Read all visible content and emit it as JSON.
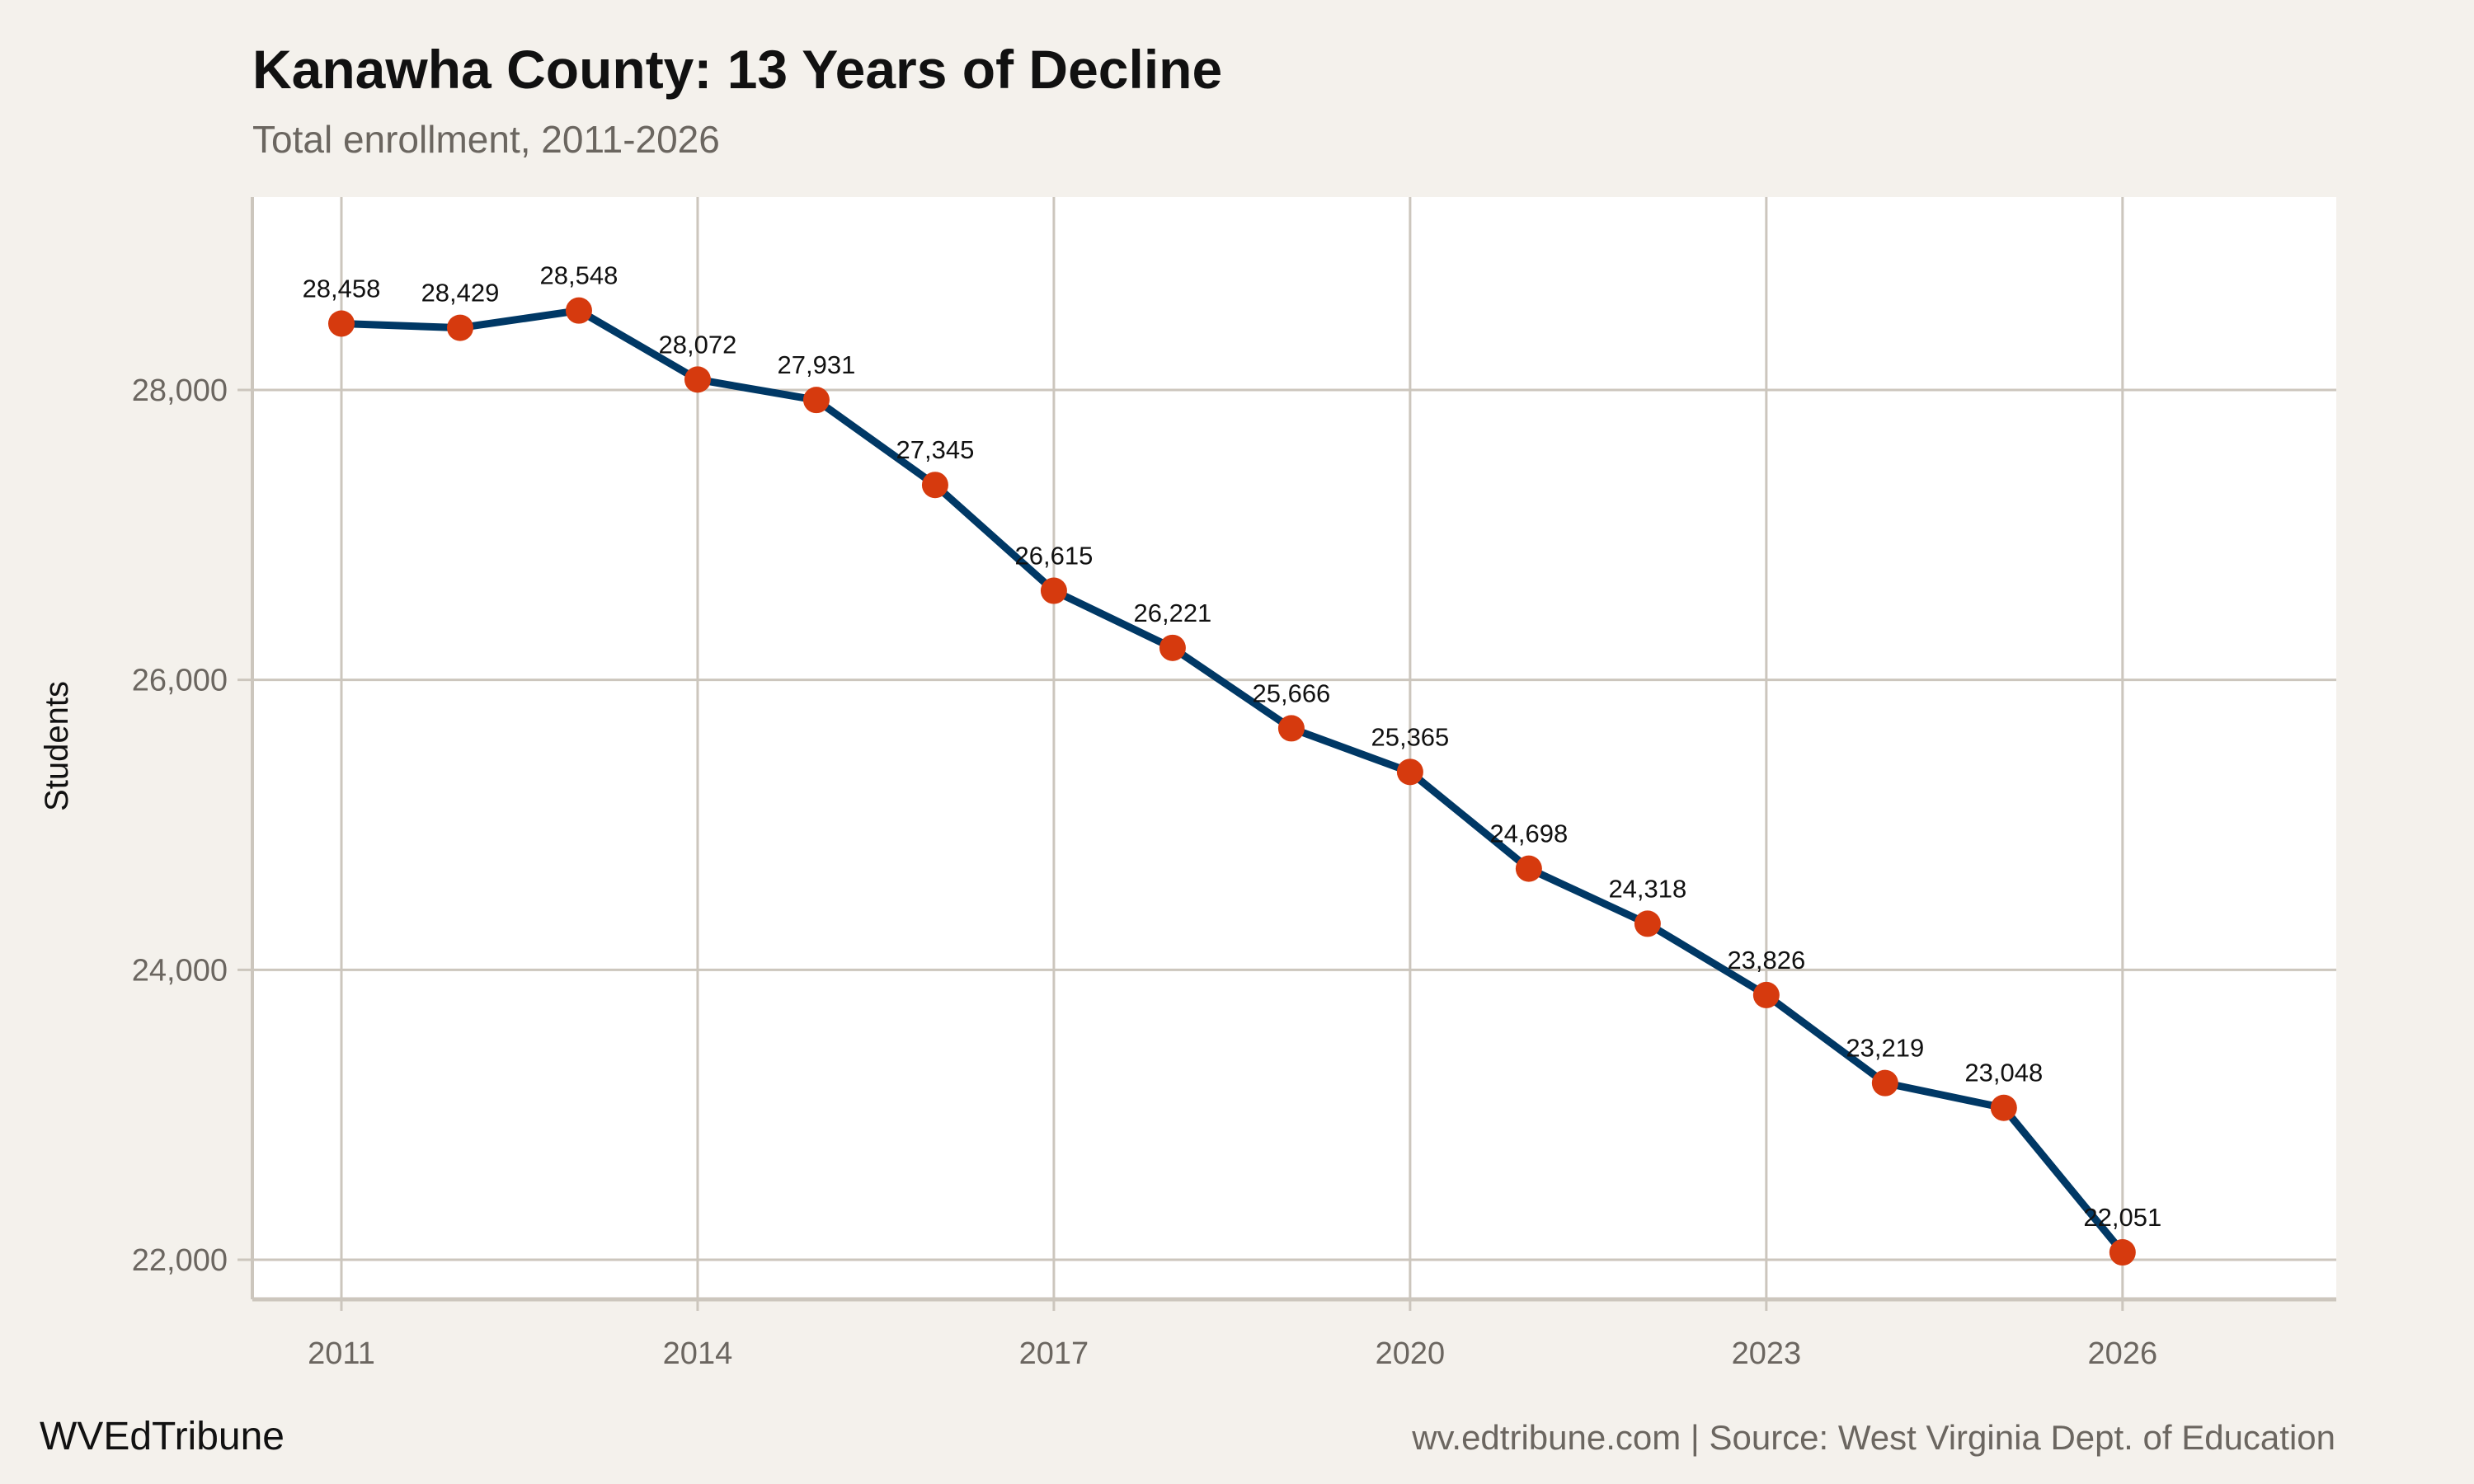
{
  "header": {
    "title": "Kanawha County: 13 Years of Decline",
    "subtitle": "Total enrollment, 2011-2026"
  },
  "footer": {
    "brand": "WVEdTribune",
    "source": "wv.edtribune.com | Source: West Virginia Dept. of Education"
  },
  "colors": {
    "background": "#F4F1EC",
    "panel": "#FFFFFF",
    "grid": "#CCC6BD",
    "line": "#003865",
    "point": "#D63A0E"
  },
  "chart_data": {
    "type": "line",
    "title": "Kanawha County: 13 Years of Decline",
    "subtitle": "Total enrollment, 2011-2026",
    "xlabel": "",
    "ylabel": "Students",
    "x": [
      2011,
      2012,
      2013,
      2014,
      2015,
      2016,
      2017,
      2018,
      2019,
      2020,
      2021,
      2022,
      2023,
      2024,
      2025,
      2026
    ],
    "values": [
      28458,
      28429,
      28548,
      28072,
      27931,
      27345,
      26615,
      26221,
      25666,
      25365,
      24698,
      24318,
      23826,
      23219,
      23048,
      22051
    ],
    "data_labels": [
      "28,458",
      "28,429",
      "28,548",
      "28,072",
      "27,931",
      "27,345",
      "26,615",
      "26,221",
      "25,666",
      "25,365",
      "24,698",
      "24,318",
      "23,826",
      "23,219",
      "23,048",
      "22,051"
    ],
    "x_ticks": [
      2011,
      2014,
      2017,
      2020,
      2023,
      2026
    ],
    "x_tick_labels": [
      "2011",
      "2014",
      "2017",
      "2020",
      "2023",
      "2026"
    ],
    "y_ticks": [
      22000,
      24000,
      26000,
      28000
    ],
    "y_tick_labels": [
      "22,000",
      "24,000",
      "26,000",
      "28,000"
    ],
    "xlim": [
      2010.25,
      2027.8
    ],
    "ylim": [
      21727,
      29331
    ],
    "grid": true,
    "legend": "none"
  }
}
